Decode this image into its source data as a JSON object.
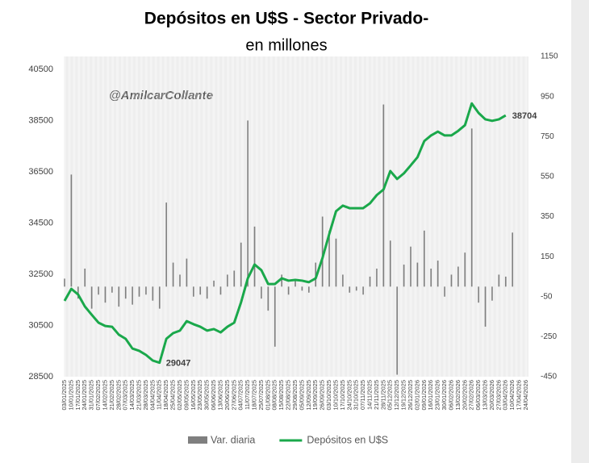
{
  "chart_data": {
    "type": "bar-line",
    "title": "Depósitos en U$S - Sector Privado-",
    "subtitle": "en millones",
    "annotation": "@AmilcarCollante",
    "categories": [
      "03/01/2025",
      "10/01/2025",
      "17/01/2025",
      "24/01/2025",
      "31/01/2025",
      "07/02/2025",
      "14/02/2025",
      "21/02/2025",
      "28/02/2025",
      "07/03/2025",
      "14/03/2025",
      "21/03/2025",
      "28/03/2025",
      "04/04/2025",
      "11/04/2025",
      "18/04/2025",
      "25/04/2025",
      "02/05/2025",
      "09/05/2025",
      "16/05/2025",
      "23/05/2025",
      "30/05/2025",
      "06/06/2025",
      "13/06/2025",
      "20/06/2025",
      "27/06/2025",
      "04/07/2025",
      "11/07/2025",
      "18/07/2025",
      "25/07/2025",
      "01/08/2025",
      "08/08/2025",
      "15/08/2025",
      "22/08/2025",
      "29/08/2025",
      "05/09/2025",
      "12/09/2025",
      "19/09/2025",
      "26/09/2025",
      "03/10/2025",
      "10/10/2025",
      "17/10/2025",
      "24/10/2025",
      "31/10/2025",
      "07/11/2025",
      "14/11/2025",
      "21/11/2025",
      "28/11/2025",
      "05/12/2025",
      "12/12/2025",
      "19/12/2025",
      "26/12/2025",
      "02/01/2026",
      "09/01/2026",
      "16/01/2026",
      "23/01/2026",
      "30/01/2026",
      "06/02/2026",
      "13/02/2026",
      "20/02/2026",
      "27/02/2026",
      "06/03/2026",
      "13/03/2026",
      "20/03/2026",
      "27/03/2026",
      "03/04/2026",
      "10/04/2026",
      "17/04/2026",
      "24/04/2026"
    ],
    "series": [
      {
        "name": "Var. diaria",
        "type": "bar",
        "axis": "y2",
        "color": "#7f7f7f",
        "values": [
          40,
          560,
          -60,
          90,
          -110,
          -40,
          -80,
          -30,
          -100,
          -60,
          -90,
          -50,
          -40,
          -70,
          -110,
          420,
          120,
          60,
          140,
          -50,
          -40,
          -60,
          30,
          -40,
          60,
          80,
          220,
          830,
          300,
          -60,
          -120,
          -300,
          60,
          -40,
          30,
          -20,
          -30,
          120,
          350,
          280,
          240,
          60,
          -30,
          -20,
          -40,
          50,
          90,
          910,
          230,
          -440,
          110,
          200,
          120,
          280,
          90,
          130,
          -50,
          60,
          100,
          170,
          790,
          -80,
          -200,
          -70,
          60,
          50,
          270,
          null,
          null
        ]
      },
      {
        "name": "Depósitos en U$S",
        "type": "line",
        "axis": "y",
        "color": "#1aa84b",
        "values": [
          31460,
          31930,
          31710,
          31240,
          30920,
          30610,
          30480,
          30450,
          30140,
          29980,
          29600,
          29510,
          29350,
          29130,
          29047,
          29980,
          30200,
          30300,
          30670,
          30550,
          30450,
          30300,
          30360,
          30230,
          30450,
          30610,
          31400,
          32340,
          32880,
          32660,
          32120,
          32120,
          32340,
          32250,
          32280,
          32250,
          32190,
          32340,
          33130,
          34070,
          34960,
          35180,
          35080,
          35080,
          35080,
          35270,
          35590,
          35810,
          36530,
          36220,
          36440,
          36750,
          37070,
          37700,
          37920,
          38070,
          37920,
          37920,
          38100,
          38320,
          39170,
          38800,
          38550,
          38490,
          38550,
          38704,
          null,
          null,
          null
        ],
        "value_labels": [
          null,
          null,
          null,
          null,
          null,
          null,
          null,
          null,
          null,
          null,
          null,
          null,
          null,
          null,
          "29047",
          null,
          null,
          null,
          null,
          null,
          null,
          null,
          null,
          null,
          null,
          null,
          null,
          null,
          null,
          null,
          null,
          null,
          null,
          null,
          null,
          null,
          null,
          null,
          null,
          null,
          null,
          null,
          null,
          null,
          null,
          null,
          null,
          null,
          null,
          null,
          null,
          null,
          null,
          null,
          null,
          null,
          null,
          null,
          null,
          null,
          null,
          null,
          null,
          null,
          null,
          "38704",
          null,
          null,
          null
        ]
      }
    ],
    "ylim": [
      28500,
      40500
    ],
    "yticks": [
      28500,
      30500,
      32500,
      34500,
      36500,
      38500,
      40500
    ],
    "y2lim": [
      -450,
      1150
    ],
    "y2ticks": [
      -450,
      -250,
      -50,
      150,
      350,
      550,
      750,
      950,
      1150
    ],
    "xgrid": true,
    "legend": "bottom"
  }
}
